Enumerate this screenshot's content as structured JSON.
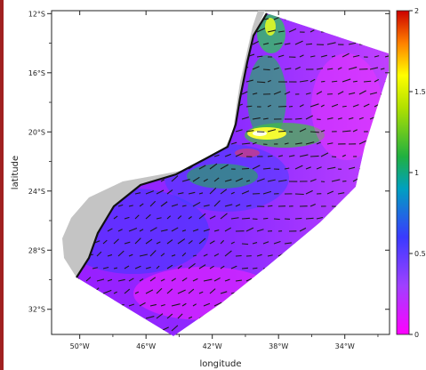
{
  "axes": {
    "xlabel": "longitude",
    "ylabel": "latitude",
    "x_ticks": [
      "50°W",
      "46°W",
      "42°W",
      "38°W",
      "34°W"
    ],
    "x_values": [
      -50,
      -46,
      -42,
      -38,
      -34
    ],
    "y_ticks": [
      "12°S",
      "16°S",
      "20°S",
      "24°S",
      "28°S",
      "32°S"
    ],
    "y_values": [
      -12,
      -16,
      -20,
      -24,
      -28,
      -32
    ],
    "xlim": [
      -51.7,
      -31.3
    ],
    "ylim": [
      -33.7,
      -11.8
    ],
    "grid": false
  },
  "colorbar": {
    "ticks": [
      "2",
      "1.5",
      "1",
      "0.5",
      "0"
    ],
    "values": [
      2,
      1.5,
      1,
      0.5,
      0
    ],
    "range": [
      0,
      2
    ],
    "colors": [
      "#ff00ff",
      "#8a2be2",
      "#3a3aff",
      "#00c08a",
      "#4fc000",
      "#ffff00",
      "#ff8c00",
      "#cc0000"
    ]
  },
  "colors": {
    "land": "#c4c4c4",
    "coastline": "#111111",
    "background": "#ffffff",
    "left_edge": "#a02020"
  }
}
